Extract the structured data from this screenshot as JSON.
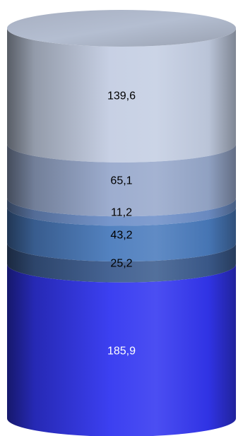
{
  "chart_data": {
    "type": "bar",
    "subtype": "stacked-cylinder",
    "categories": [
      ""
    ],
    "series": [
      {
        "value": 185.9,
        "label": "185,9",
        "color": "#3236f0",
        "label_color": "#ffffff"
      },
      {
        "value": 25.2,
        "label": "25,2",
        "color": "#3c5c8e",
        "label_color": "#000000"
      },
      {
        "value": 43.2,
        "label": "43,2",
        "color": "#4a7bbd",
        "label_color": "#000000"
      },
      {
        "value": 11.2,
        "label": "11,2",
        "color": "#6f90c9",
        "label_color": "#000000"
      },
      {
        "value": 65.1,
        "label": "65,1",
        "color": "#98a9cc",
        "label_color": "#000000"
      },
      {
        "value": 139.6,
        "label": "139,6",
        "color": "#c4cee3",
        "label_color": "#000000"
      }
    ],
    "grid": false,
    "legend": "none"
  }
}
